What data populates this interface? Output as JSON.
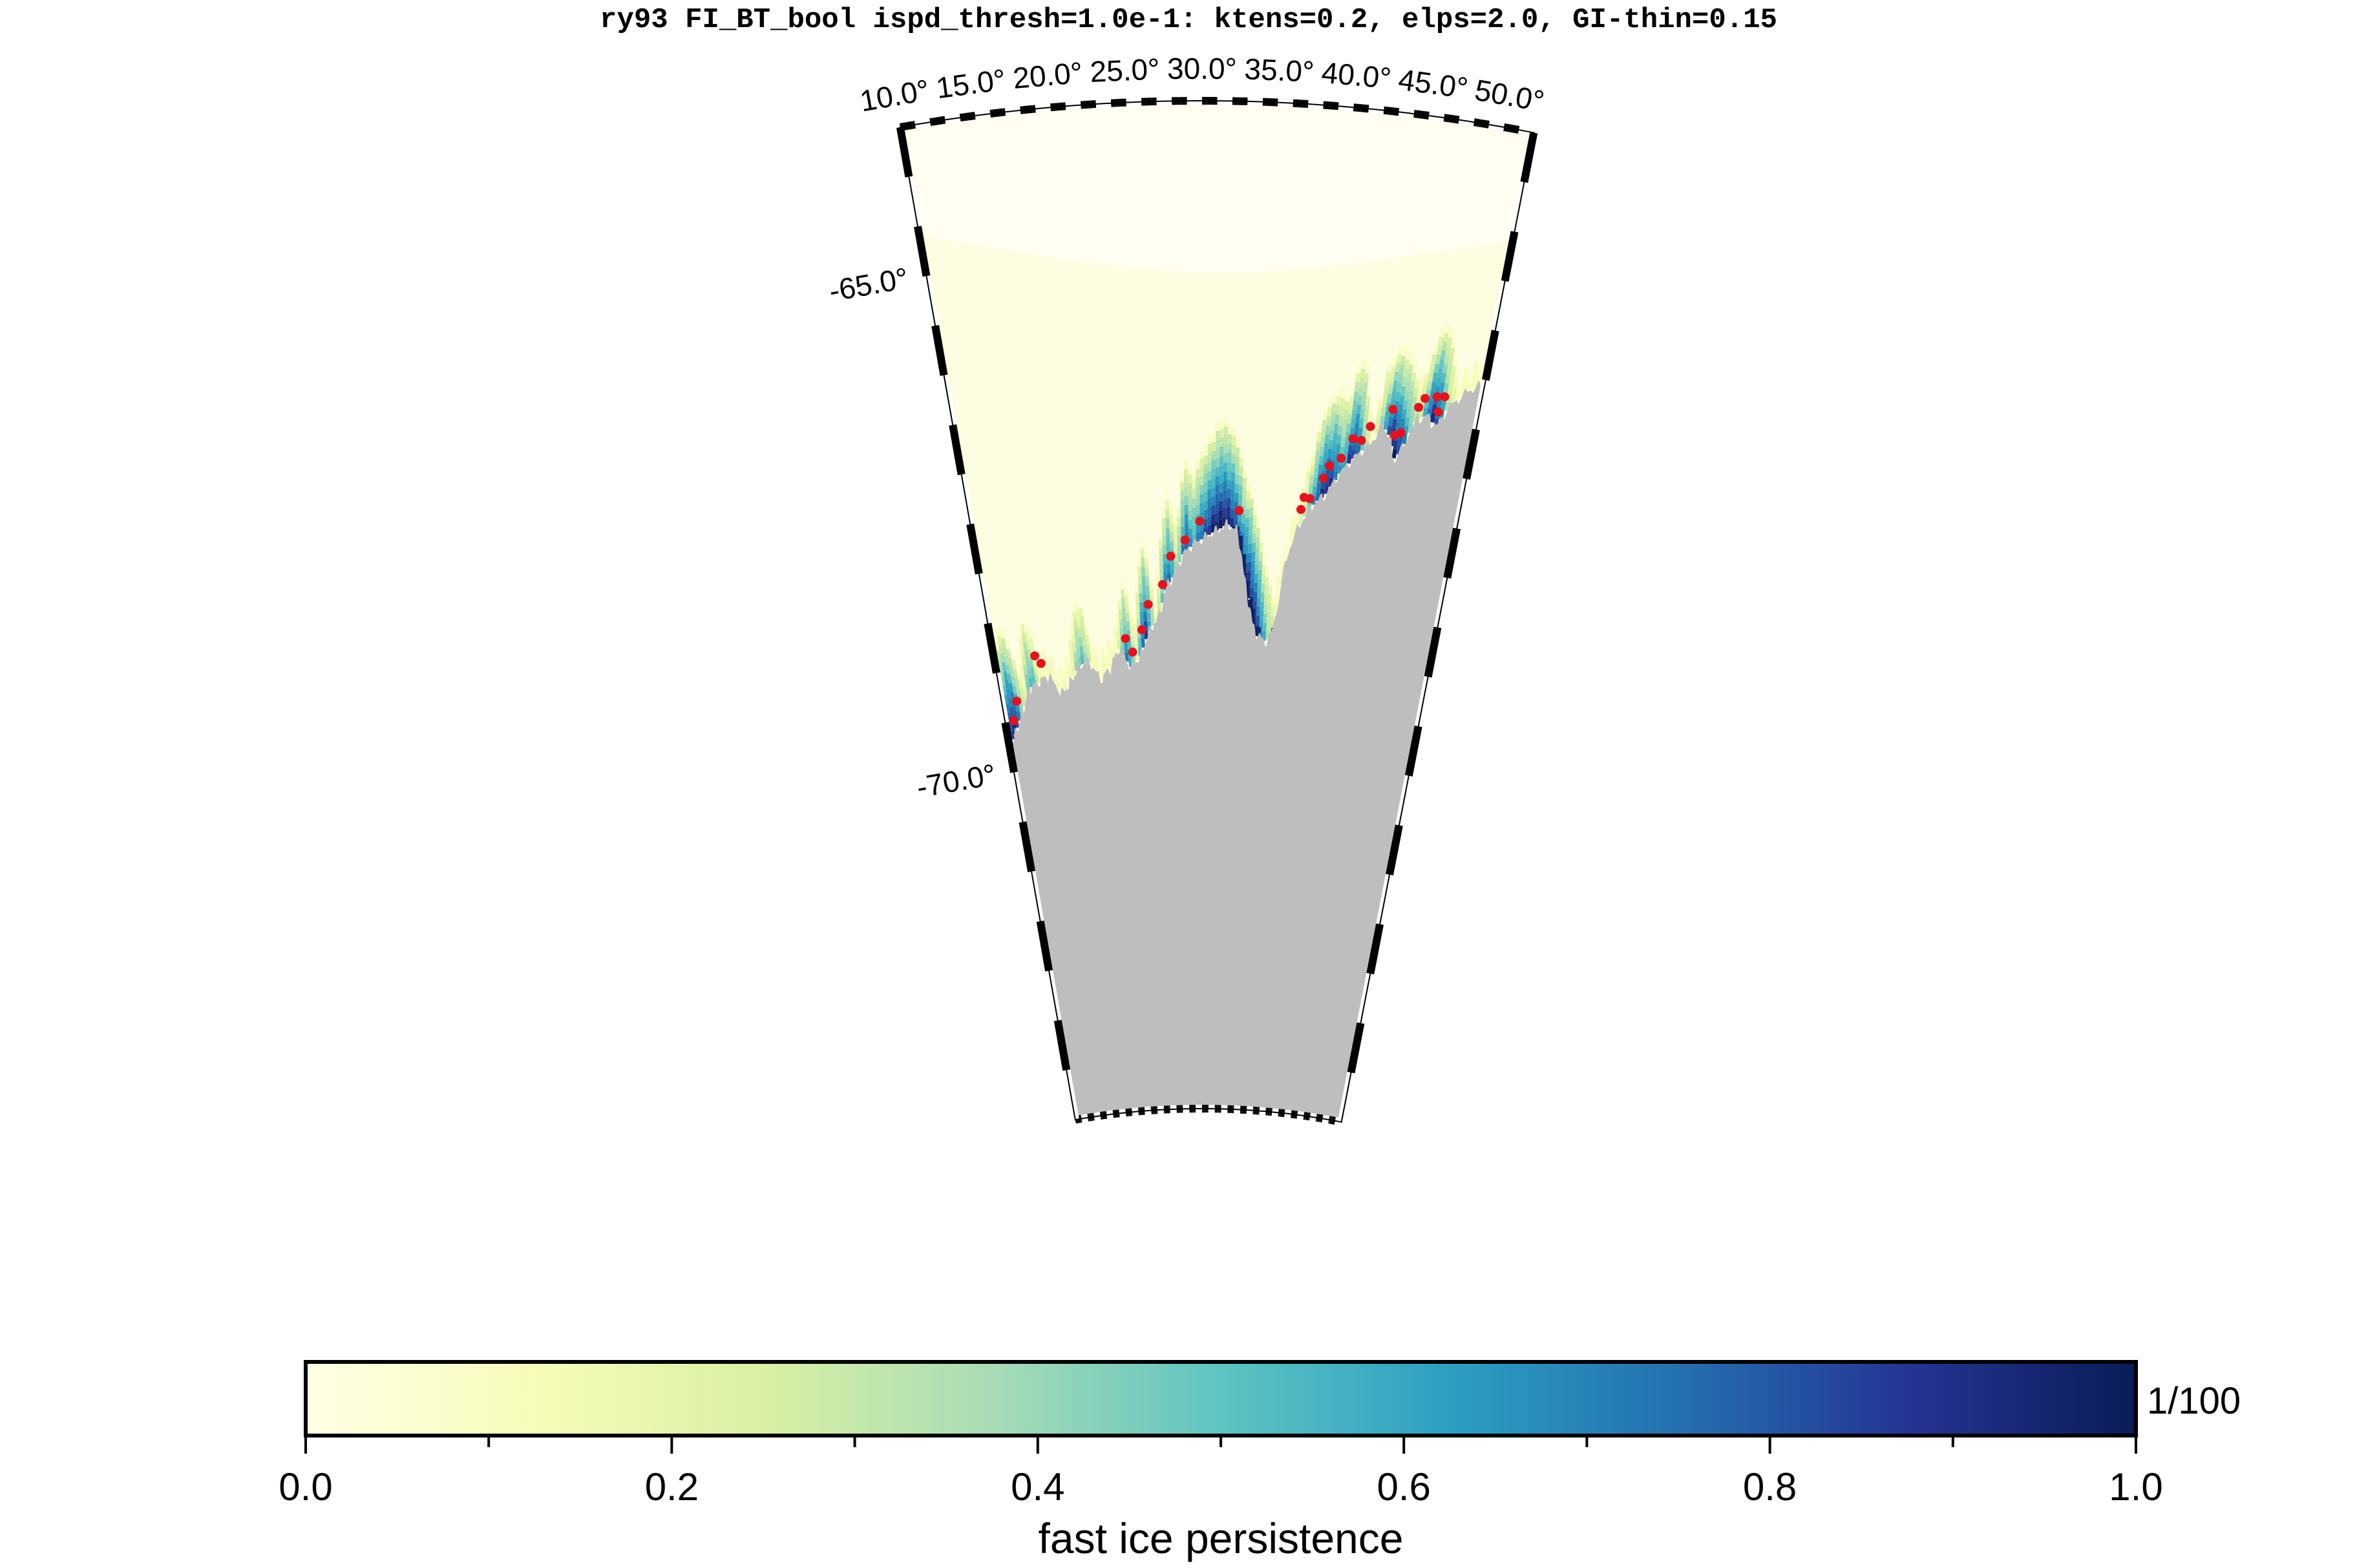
{
  "title": "ry93 FI_BT_bool ispd_thresh=1.0e-1: kten​s=0.2, elps=2.0, GI-thin=0.15",
  "map": {
    "longitude_labels": [
      "10.0°",
      "15.0°",
      "20.0°",
      "25.0°",
      "30.0°",
      "35.0°",
      "40.0°",
      "45.0°",
      "50.0°"
    ],
    "latitude_labels": [
      "-65.0°",
      "-70.0°"
    ],
    "land_color": "#bebebe",
    "ocean_color": "#fffef0",
    "grounded_iceberg_marker_color": "#e8101c"
  },
  "colorbar": {
    "label": "fast ice persistence",
    "tick_labels": [
      "0.0",
      "0.2",
      "0.4",
      "0.6",
      "0.8",
      "1.0"
    ],
    "scale_label": "1/100",
    "range": [
      0.0,
      1.0
    ],
    "colors": [
      "#ffffe5",
      "#f7fcb9",
      "#d9f0a3",
      "#a8dcb6",
      "#5ec4c1",
      "#2c9fc3",
      "#2470b0",
      "#253494",
      "#081d58"
    ]
  }
}
